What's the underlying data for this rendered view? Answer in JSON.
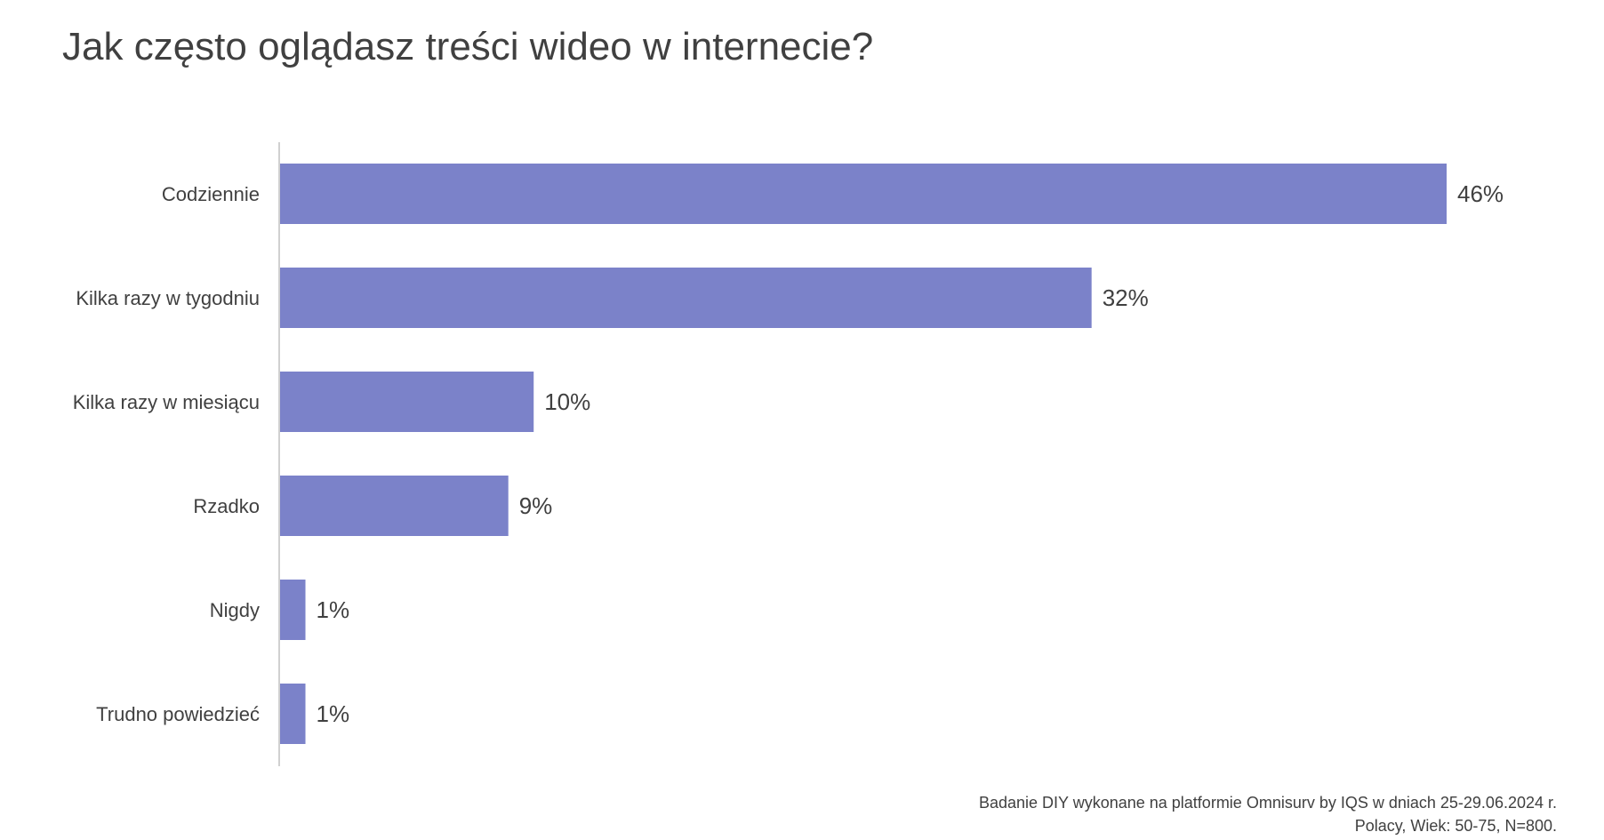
{
  "title": "Jak często oglądasz treści wideo w internecie?",
  "footnote": {
    "line1": "Badanie DIY wykonane na platformie Omnisurv by IQS w dniach 25-29.06.2024 r.",
    "line2": "Polacy, Wiek: 50-75, N=800."
  },
  "colors": {
    "bar": "#7b82c9",
    "axis": "#d0d0d0",
    "text": "#404040"
  },
  "chart_data": {
    "type": "bar",
    "orientation": "horizontal",
    "categories": [
      "Codziennie",
      "Kilka razy w tygodniu",
      "Kilka razy w miesiącu",
      "Rzadko",
      "Nigdy",
      "Trudno powiedzieć"
    ],
    "values": [
      46,
      32,
      10,
      9,
      1,
      1
    ],
    "value_labels": [
      "46%",
      "32%",
      "10%",
      "9%",
      "1%",
      "1%"
    ],
    "unit": "%",
    "xlim": [
      0,
      46
    ],
    "grid": false,
    "legend": "none"
  }
}
